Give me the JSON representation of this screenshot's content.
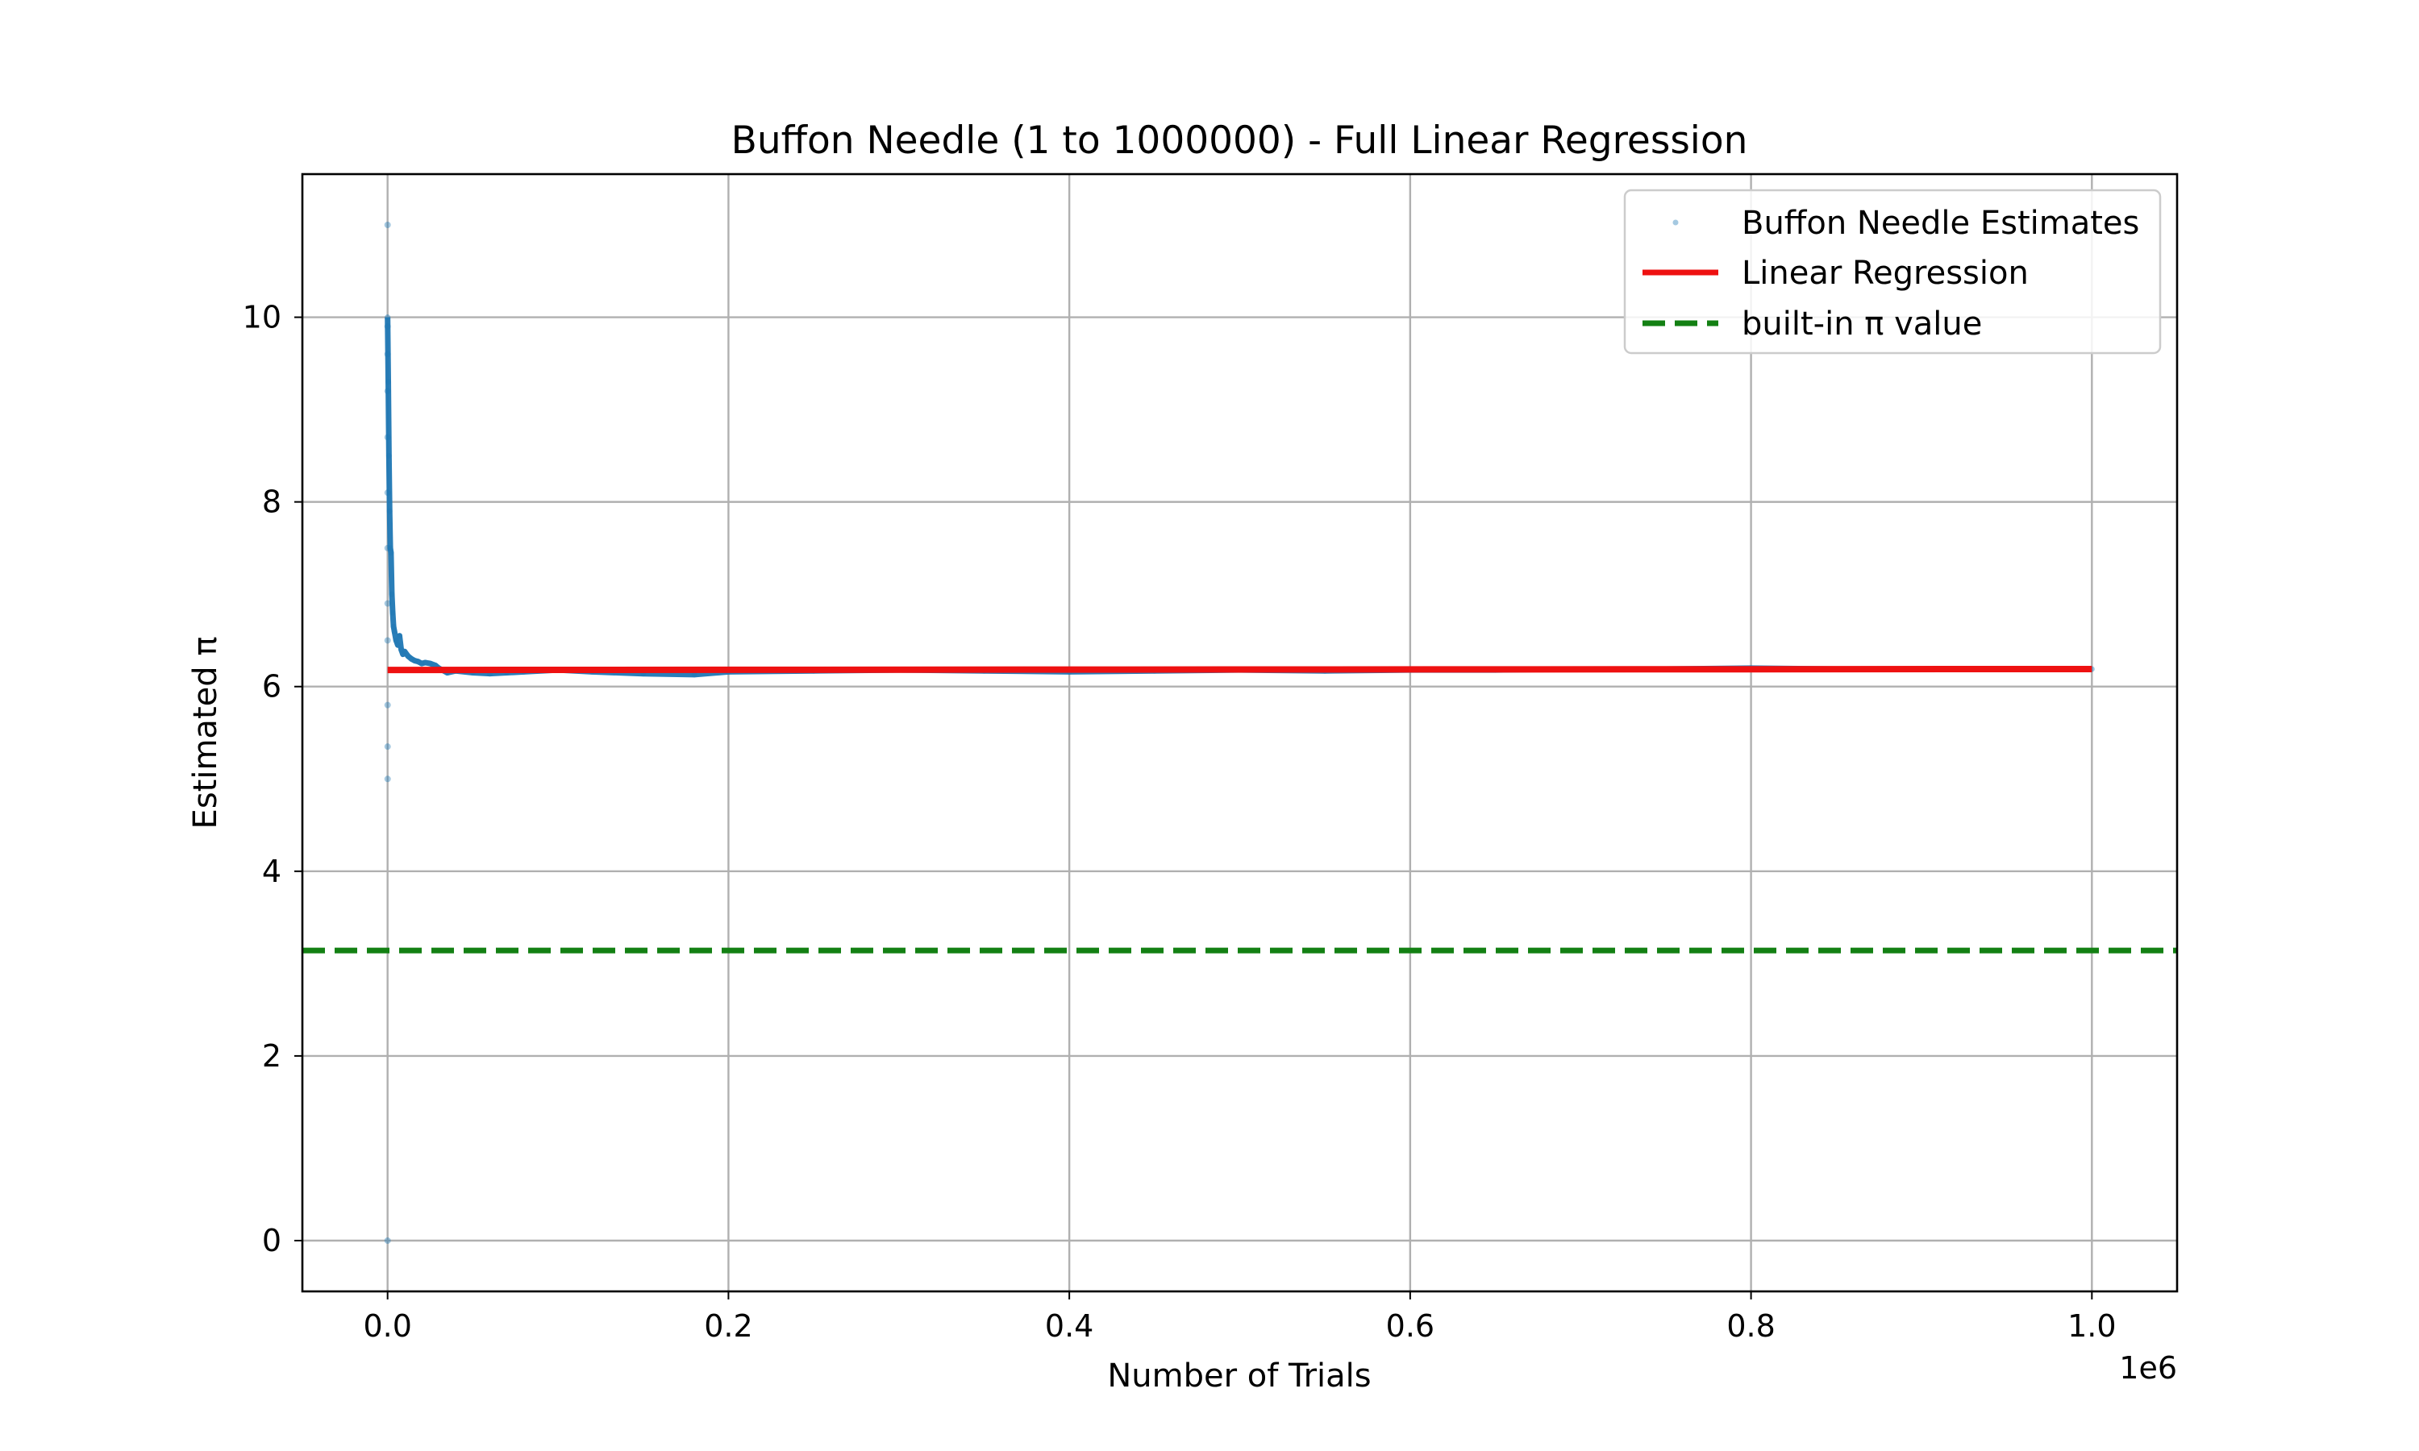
{
  "chart_data": {
    "type": "line",
    "title": "Buffon Needle (1 to 1000000) - Full Linear Regression",
    "xlabel": "Number of Trials",
    "ylabel": "Estimated π",
    "x_offset_label": "1e6",
    "xlim": [
      -50000,
      1050000
    ],
    "ylim": [
      -0.55,
      11.55
    ],
    "x_ticks": [
      0,
      200000,
      400000,
      600000,
      800000,
      1000000
    ],
    "x_tick_labels": [
      "0.0",
      "0.2",
      "0.4",
      "0.6",
      "0.8",
      "1.0"
    ],
    "y_ticks": [
      0,
      2,
      4,
      6,
      8,
      10
    ],
    "y_tick_labels": [
      "0",
      "2",
      "4",
      "6",
      "8",
      "10"
    ],
    "grid": true,
    "legend_position": "top-right",
    "series": [
      {
        "name": "Buffon Needle Estimates",
        "kind": "scatter",
        "color": "#1f77b4",
        "scatter_points": [
          {
            "x": 1,
            "y": 0
          },
          {
            "x": 2,
            "y": 11.0
          },
          {
            "x": 3,
            "y": 9.9
          },
          {
            "x": 4,
            "y": 9.6
          },
          {
            "x": 5,
            "y": 9.2
          },
          {
            "x": 6,
            "y": 8.7
          },
          {
            "x": 7,
            "y": 8.1
          },
          {
            "x": 8,
            "y": 7.5
          },
          {
            "x": 9,
            "y": 6.9
          },
          {
            "x": 10,
            "y": 6.5
          },
          {
            "x": 12,
            "y": 5.8
          },
          {
            "x": 14,
            "y": 5.35
          },
          {
            "x": 16,
            "y": 5.0
          }
        ],
        "x": [
          1,
          400,
          800,
          1200,
          1600,
          2000,
          2500,
          3000,
          3500,
          4000,
          5000,
          6000,
          7000,
          8000,
          9000,
          10000,
          12000,
          14000,
          16000,
          18000,
          20000,
          22000,
          25000,
          28000,
          30000,
          35000,
          40000,
          50000,
          60000,
          70000,
          80000,
          100000,
          120000,
          150000,
          180000,
          200000,
          250000,
          300000,
          350000,
          400000,
          450000,
          500000,
          550000,
          600000,
          650000,
          700000,
          750000,
          800000,
          850000,
          900000,
          950000,
          1000000
        ],
        "y": [
          10.0,
          9.3,
          8.5,
          7.9,
          7.5,
          7.45,
          7.0,
          6.8,
          6.65,
          6.6,
          6.5,
          6.45,
          6.55,
          6.4,
          6.35,
          6.38,
          6.33,
          6.3,
          6.28,
          6.27,
          6.25,
          6.26,
          6.25,
          6.23,
          6.2,
          6.15,
          6.17,
          6.15,
          6.14,
          6.15,
          6.16,
          6.18,
          6.16,
          6.14,
          6.13,
          6.16,
          6.17,
          6.18,
          6.17,
          6.16,
          6.17,
          6.18,
          6.17,
          6.18,
          6.18,
          6.19,
          6.19,
          6.2,
          6.19,
          6.19,
          6.19,
          6.19
        ]
      },
      {
        "name": "Linear Regression",
        "kind": "line",
        "color": "#ee1111",
        "x": [
          0,
          1000000
        ],
        "y": [
          6.18,
          6.19
        ]
      },
      {
        "name": "built-in π value",
        "kind": "hline",
        "color": "#138013",
        "y": 3.14159
      }
    ]
  }
}
